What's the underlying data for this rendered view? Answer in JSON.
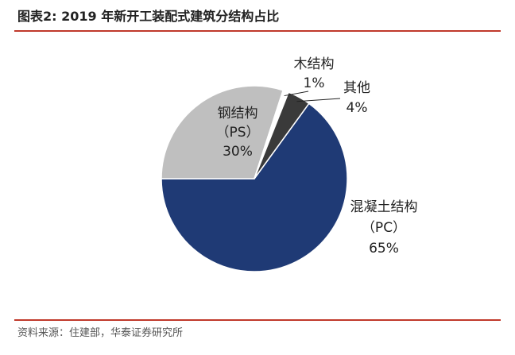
{
  "figure": {
    "title": "图表2:   2019 年新开工装配式建筑分结构占比",
    "source": "资料来源：住建部，华泰证券研究所"
  },
  "colors": {
    "rule": "#c0392b",
    "pc": "#1f3a75",
    "ps": "#bfbfbf",
    "wood": "#ffffff",
    "other": "#3a3a3a"
  },
  "chart_data": {
    "type": "pie",
    "title": "2019 年新开工装配式建筑分结构占比",
    "slices": [
      {
        "name": "混凝土结构",
        "sub": "（PC）",
        "value": 65,
        "pct": "65%",
        "color": "#1f3a75"
      },
      {
        "name": "钢结构",
        "sub": "（PS）",
        "value": 30,
        "pct": "30%",
        "color": "#bfbfbf"
      },
      {
        "name": "木结构",
        "sub": "",
        "value": 1,
        "pct": "1%",
        "color": "#ffffff"
      },
      {
        "name": "其他",
        "sub": "",
        "value": 4,
        "pct": "4%",
        "color": "#3a3a3a"
      }
    ]
  }
}
